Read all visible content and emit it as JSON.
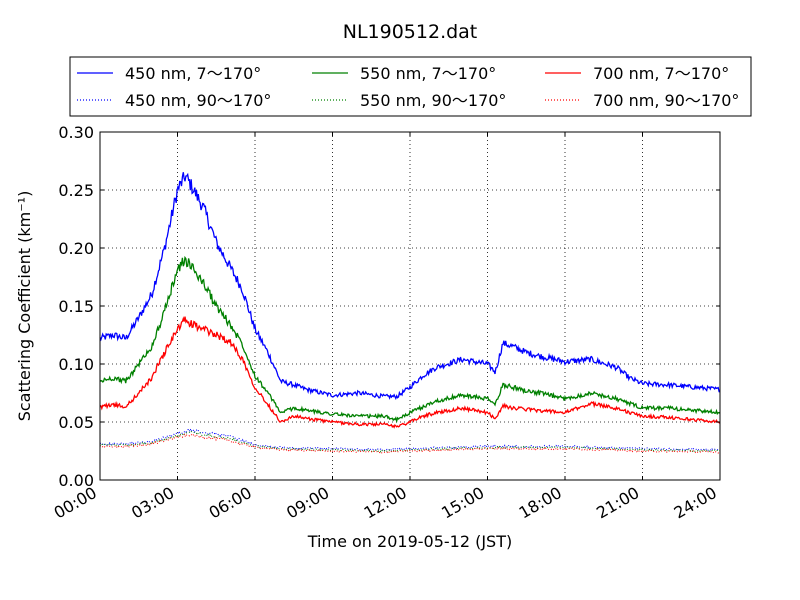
{
  "chart_data": {
    "type": "line",
    "title": "NL190512.dat",
    "xlabel": "Time on 2019-05-12 (JST)",
    "ylabel": "Scattering Coefficient (km⁻¹)",
    "xlim": [
      0,
      24
    ],
    "ylim": [
      0.0,
      0.3
    ],
    "x_tick_labels": [
      "00:00",
      "03:00",
      "06:00",
      "09:00",
      "12:00",
      "15:00",
      "18:00",
      "21:00",
      "24:00"
    ],
    "y_tick_labels": [
      "0.00",
      "0.05",
      "0.10",
      "0.15",
      "0.20",
      "0.25",
      "0.30"
    ],
    "grid": true,
    "legend_position": "top",
    "series": [
      {
        "name": "450 nm, 7～170°",
        "color": "#0000ff",
        "style": "solid",
        "x": [
          0,
          0.5,
          1,
          1.5,
          2,
          2.5,
          3,
          3.3,
          3.5,
          4,
          4.5,
          5,
          5.5,
          6,
          6.5,
          7,
          7.5,
          8,
          9,
          10,
          11,
          11.5,
          12,
          12.5,
          13,
          14,
          15,
          15.3,
          15.6,
          16,
          16.5,
          17,
          18,
          19,
          20,
          20.5,
          21,
          22,
          23,
          24
        ],
        "y": [
          0.122,
          0.125,
          0.122,
          0.14,
          0.16,
          0.2,
          0.25,
          0.262,
          0.255,
          0.235,
          0.205,
          0.185,
          0.165,
          0.13,
          0.11,
          0.085,
          0.082,
          0.078,
          0.073,
          0.075,
          0.072,
          0.072,
          0.08,
          0.09,
          0.097,
          0.104,
          0.1,
          0.093,
          0.118,
          0.115,
          0.11,
          0.107,
          0.102,
          0.104,
          0.097,
          0.088,
          0.083,
          0.082,
          0.08,
          0.078
        ]
      },
      {
        "name": "450 nm, 90～170°",
        "color": "#0000ff",
        "style": "dotted",
        "x": [
          0,
          1,
          2,
          3,
          3.5,
          4,
          5,
          6,
          7,
          9,
          11,
          12,
          15,
          18,
          21,
          24
        ],
        "y": [
          0.031,
          0.031,
          0.033,
          0.04,
          0.043,
          0.041,
          0.038,
          0.03,
          0.028,
          0.027,
          0.026,
          0.027,
          0.029,
          0.029,
          0.027,
          0.026
        ]
      },
      {
        "name": "550 nm, 7～170°",
        "color": "#008000",
        "style": "solid",
        "x": [
          0,
          0.5,
          1,
          1.5,
          2,
          2.5,
          3,
          3.3,
          3.5,
          4,
          4.5,
          5,
          5.5,
          6,
          6.5,
          7,
          7.5,
          8,
          9,
          10,
          11,
          11.5,
          12,
          12.5,
          13,
          14,
          15,
          15.3,
          15.6,
          16,
          16.5,
          17,
          18,
          19,
          20,
          20.5,
          21,
          22,
          23,
          24
        ],
        "y": [
          0.085,
          0.088,
          0.085,
          0.1,
          0.115,
          0.145,
          0.182,
          0.19,
          0.185,
          0.17,
          0.15,
          0.135,
          0.118,
          0.09,
          0.075,
          0.058,
          0.062,
          0.06,
          0.057,
          0.055,
          0.055,
          0.052,
          0.058,
          0.063,
          0.068,
          0.073,
          0.07,
          0.065,
          0.082,
          0.08,
          0.077,
          0.075,
          0.07,
          0.075,
          0.07,
          0.066,
          0.062,
          0.062,
          0.06,
          0.058
        ]
      },
      {
        "name": "550 nm, 90～170°",
        "color": "#008000",
        "style": "dotted",
        "x": [
          0,
          1,
          2,
          3,
          3.5,
          4,
          5,
          6,
          7,
          9,
          11,
          12,
          15,
          18,
          21,
          24
        ],
        "y": [
          0.03,
          0.03,
          0.032,
          0.038,
          0.041,
          0.039,
          0.036,
          0.029,
          0.027,
          0.026,
          0.025,
          0.026,
          0.028,
          0.028,
          0.026,
          0.025
        ]
      },
      {
        "name": "700 nm, 7～170°",
        "color": "#ff0000",
        "style": "solid",
        "x": [
          0,
          0.5,
          1,
          1.5,
          2,
          2.5,
          3,
          3.3,
          3.5,
          4,
          4.5,
          5,
          5.5,
          6,
          6.5,
          7,
          7.5,
          8,
          9,
          10,
          11,
          11.5,
          12,
          12.5,
          13,
          14,
          15,
          15.3,
          15.6,
          16,
          16.5,
          17,
          18,
          19,
          20,
          20.5,
          21,
          22,
          23,
          24
        ],
        "y": [
          0.063,
          0.065,
          0.063,
          0.075,
          0.088,
          0.11,
          0.13,
          0.138,
          0.135,
          0.13,
          0.125,
          0.12,
          0.105,
          0.08,
          0.065,
          0.05,
          0.055,
          0.053,
          0.05,
          0.048,
          0.048,
          0.046,
          0.05,
          0.055,
          0.058,
          0.062,
          0.058,
          0.053,
          0.064,
          0.062,
          0.061,
          0.06,
          0.058,
          0.066,
          0.062,
          0.058,
          0.055,
          0.054,
          0.052,
          0.05
        ]
      },
      {
        "name": "700 nm, 90～170°",
        "color": "#ff0000",
        "style": "dotted",
        "x": [
          0,
          1,
          2,
          3,
          3.5,
          4,
          5,
          6,
          7,
          9,
          11,
          12,
          15,
          18,
          21,
          24
        ],
        "y": [
          0.029,
          0.029,
          0.031,
          0.037,
          0.039,
          0.037,
          0.034,
          0.028,
          0.026,
          0.025,
          0.024,
          0.025,
          0.027,
          0.027,
          0.025,
          0.024
        ]
      }
    ]
  }
}
